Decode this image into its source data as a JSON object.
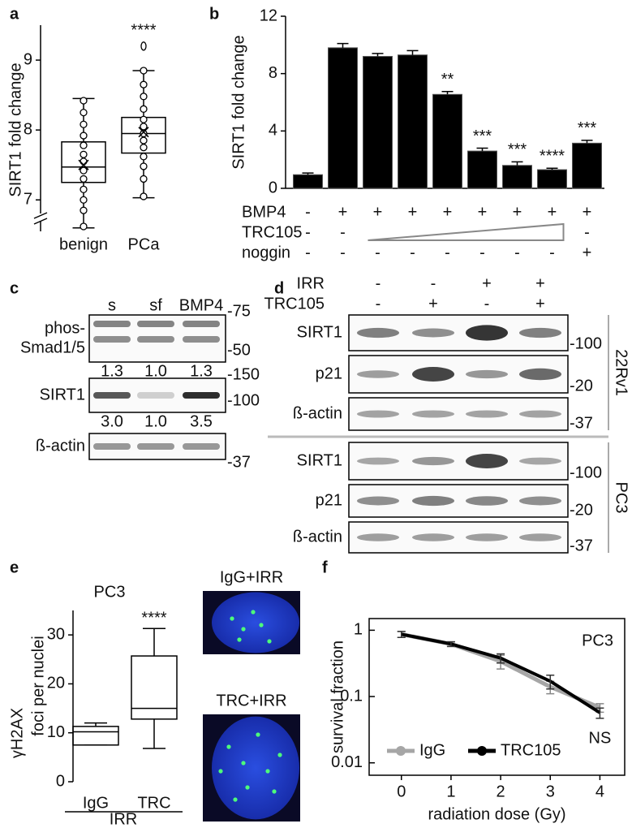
{
  "panel_labels": [
    "a",
    "b",
    "c",
    "d",
    "e",
    "f"
  ],
  "chart_data": [
    {
      "type": "box",
      "ylabel": "SIRT1 fold change",
      "categories": [
        "benign",
        "PCa"
      ],
      "boxes": [
        {
          "min": 6.6,
          "q1": 7.25,
          "median": 7.47,
          "q3": 7.83,
          "max": 8.45,
          "mean": 7.5,
          "points": [
            6.62,
            6.85,
            7.0,
            7.15,
            7.3,
            7.42,
            7.55,
            7.65,
            7.78,
            7.92,
            8.08,
            8.25,
            8.42
          ],
          "outliers": []
        },
        {
          "min": 7.03,
          "q1": 7.67,
          "median": 7.95,
          "q3": 8.18,
          "max": 8.85,
          "mean": 7.97,
          "points": [
            7.05,
            7.3,
            7.48,
            7.62,
            7.75,
            7.85,
            7.95,
            8.05,
            8.15,
            8.3,
            8.48,
            8.65,
            8.85
          ],
          "outliers": [
            9.2
          ]
        }
      ],
      "annotations": [
        null,
        "****"
      ],
      "ylim": [
        6.55,
        9.5
      ],
      "yticks": [
        7,
        8,
        9
      ],
      "axis_break": true
    },
    {
      "type": "bar",
      "ylabel": "SIRT1 fold change",
      "values": [
        0.95,
        9.8,
        9.2,
        9.3,
        6.55,
        2.6,
        1.6,
        1.3,
        3.15
      ],
      "errors": [
        0.12,
        0.3,
        0.2,
        0.3,
        0.2,
        0.2,
        0.25,
        0.1,
        0.2
      ],
      "annotations": [
        null,
        null,
        null,
        null,
        "**",
        "***",
        "***",
        "****",
        "***"
      ],
      "color": "#000000",
      "ylim": [
        0,
        12
      ],
      "yticks": [
        0,
        4,
        8,
        12
      ],
      "conditions": [
        {
          "name": "BMP4",
          "signs": [
            "-",
            "+",
            "+",
            "+",
            "+",
            "+",
            "+",
            "+",
            "+"
          ]
        },
        {
          "name": "TRC105",
          "signs": [
            "-",
            "-",
            null,
            null,
            null,
            null,
            null,
            null,
            "-"
          ]
        },
        {
          "name": "noggin",
          "signs": [
            "-",
            "-",
            "-",
            "-",
            "-",
            "-",
            "-",
            "-",
            "+"
          ]
        }
      ]
    },
    {
      "type": "box",
      "title": "PC3",
      "ylabel": [
        "γH2AX",
        "foci per nuclei"
      ],
      "categories": [
        "IgG",
        "TRC"
      ],
      "group_label": "IRR",
      "boxes": [
        {
          "min": 7.5,
          "q1": 7.5,
          "median": 10.2,
          "q3": 11.3,
          "max": 12
        },
        {
          "min": 6.8,
          "q1": 12.8,
          "median": 15,
          "q3": 25.7,
          "max": 31.3
        }
      ],
      "annotations": [
        null,
        "****"
      ],
      "ylim": [
        0,
        35
      ],
      "yticks": [
        0,
        10,
        20,
        30
      ]
    },
    {
      "type": "line",
      "log_y": true,
      "xlabel": "radiation dose (Gy)",
      "ylabel": "survival fraction",
      "annotation": "PC3",
      "x": [
        0,
        1,
        2,
        3,
        4
      ],
      "series": [
        {
          "name": "IgG",
          "color": "#a6a6a6",
          "values": [
            0.87,
            0.62,
            0.34,
            0.14,
            0.068
          ],
          "errors": [
            0.09,
            0.05,
            0.08,
            0.03,
            0.01
          ]
        },
        {
          "name": "TRC105",
          "color": "#000000",
          "values": [
            0.87,
            0.62,
            0.38,
            0.17,
            0.057
          ],
          "errors": [
            0.09,
            0.05,
            0.06,
            0.04,
            0.01
          ]
        }
      ],
      "point_labels": [
        null,
        null,
        null,
        null,
        "NS"
      ],
      "xlim": [
        -0.65,
        4.5
      ],
      "xticks": [
        0,
        1,
        2,
        3,
        4
      ],
      "ylim": [
        0.0065,
        1.5
      ],
      "yticks": [
        0.01,
        0.1,
        1
      ],
      "legend": "lower left"
    }
  ],
  "blot_c": {
    "lanes": [
      "s",
      "sf",
      "BMP4"
    ],
    "rows": [
      {
        "label": [
          "phos-",
          "Smad1/5"
        ],
        "markers": [
          "-75",
          "-50"
        ],
        "quantification": [
          "1.3",
          "1.0",
          "1.3"
        ]
      },
      {
        "label": [
          "SIRT1"
        ],
        "markers": [
          "-150",
          "-100"
        ],
        "quantification": [
          "3.0",
          "1.0",
          "3.5"
        ]
      },
      {
        "label": [
          "ß-actin"
        ],
        "markers": [
          "-37"
        ]
      }
    ]
  },
  "blot_d": {
    "treatments": [
      {
        "name": "IRR",
        "signs": [
          "-",
          "-",
          "+",
          "+"
        ]
      },
      {
        "name": "TRC105",
        "signs": [
          "-",
          "+",
          "-",
          "+"
        ]
      }
    ],
    "cell_lines": [
      {
        "name": "22Rv1",
        "rows": [
          {
            "label": "SIRT1",
            "marker": "-100"
          },
          {
            "label": "p21",
            "marker": "-20"
          },
          {
            "label": "ß-actin",
            "marker": "-37"
          }
        ]
      },
      {
        "name": "PC3",
        "rows": [
          {
            "label": "SIRT1",
            "marker": "-100"
          },
          {
            "label": "p21",
            "marker": "-20"
          },
          {
            "label": "ß-actin",
            "marker": "-37"
          }
        ]
      }
    ]
  },
  "images_e": {
    "labels": [
      "IgG+IRR",
      "TRC+IRR"
    ]
  }
}
